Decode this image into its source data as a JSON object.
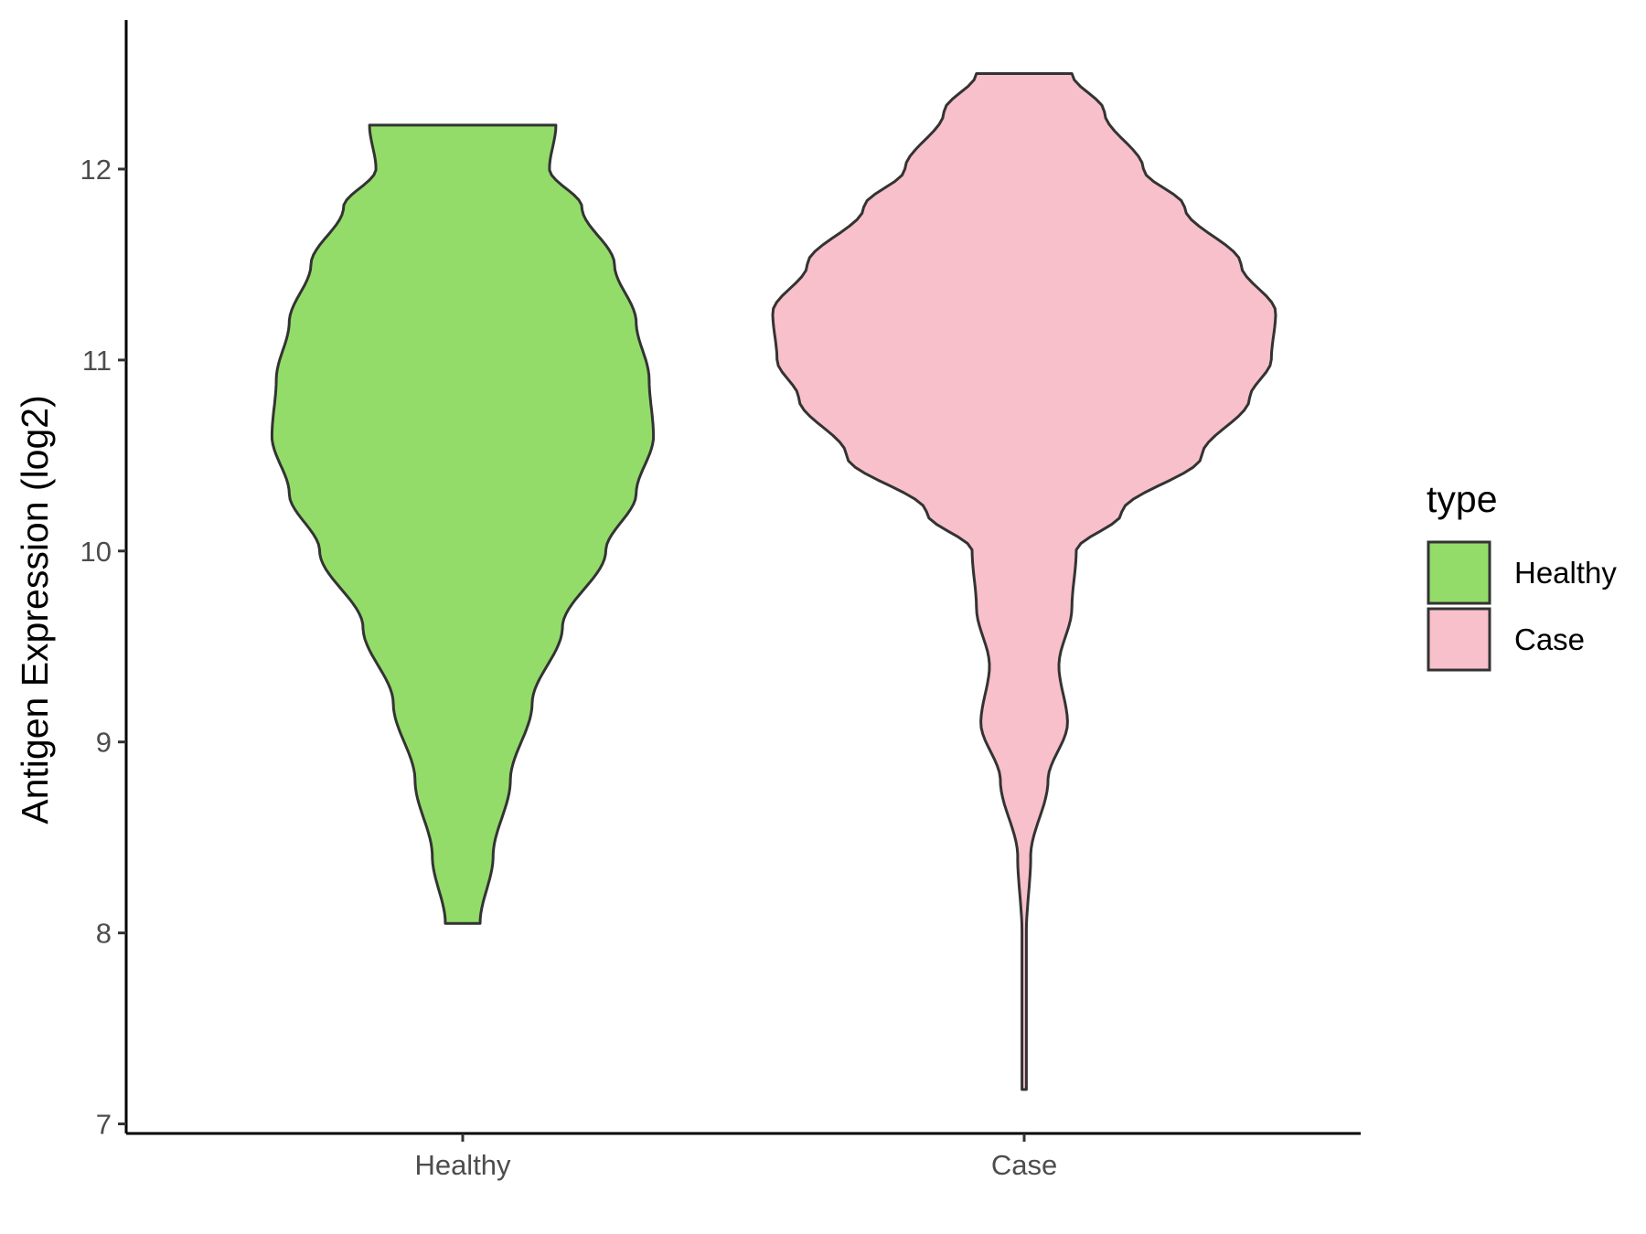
{
  "chart_data": {
    "type": "violin",
    "title": "",
    "xlabel": "",
    "ylabel": "Antigen Expression (log2)",
    "ylim": [
      6.95,
      12.78
    ],
    "yticks": [
      7,
      8,
      9,
      10,
      11,
      12
    ],
    "categories": [
      "Healthy",
      "Case"
    ],
    "legend": {
      "title": "type",
      "position": "right",
      "entries": [
        "Healthy",
        "Case"
      ]
    },
    "grid": false,
    "colors": {
      "Healthy": "#93dc6a",
      "Case": "#f8c0cb",
      "outline": "#333333"
    },
    "series": [
      {
        "name": "Healthy",
        "min": 8.05,
        "max": 12.23,
        "density_profile": [
          [
            8.05,
            0.08
          ],
          [
            8.4,
            0.14
          ],
          [
            8.8,
            0.22
          ],
          [
            9.2,
            0.32
          ],
          [
            9.6,
            0.46
          ],
          [
            10.0,
            0.66
          ],
          [
            10.3,
            0.8
          ],
          [
            10.6,
            0.88
          ],
          [
            10.9,
            0.86
          ],
          [
            11.2,
            0.8
          ],
          [
            11.5,
            0.7
          ],
          [
            11.8,
            0.55
          ],
          [
            12.0,
            0.4
          ],
          [
            12.23,
            0.43
          ]
        ]
      },
      {
        "name": "Case",
        "min": 7.18,
        "max": 12.5,
        "density_profile": [
          [
            7.18,
            0.01
          ],
          [
            7.6,
            0.01
          ],
          [
            8.0,
            0.01
          ],
          [
            8.4,
            0.03
          ],
          [
            8.8,
            0.11
          ],
          [
            9.1,
            0.2
          ],
          [
            9.4,
            0.16
          ],
          [
            9.7,
            0.22
          ],
          [
            10.0,
            0.24
          ],
          [
            10.2,
            0.45
          ],
          [
            10.5,
            0.82
          ],
          [
            10.8,
            1.04
          ],
          [
            11.0,
            1.14
          ],
          [
            11.25,
            1.16
          ],
          [
            11.5,
            1.0
          ],
          [
            11.8,
            0.74
          ],
          [
            12.0,
            0.55
          ],
          [
            12.3,
            0.37
          ],
          [
            12.5,
            0.22
          ]
        ]
      }
    ]
  }
}
